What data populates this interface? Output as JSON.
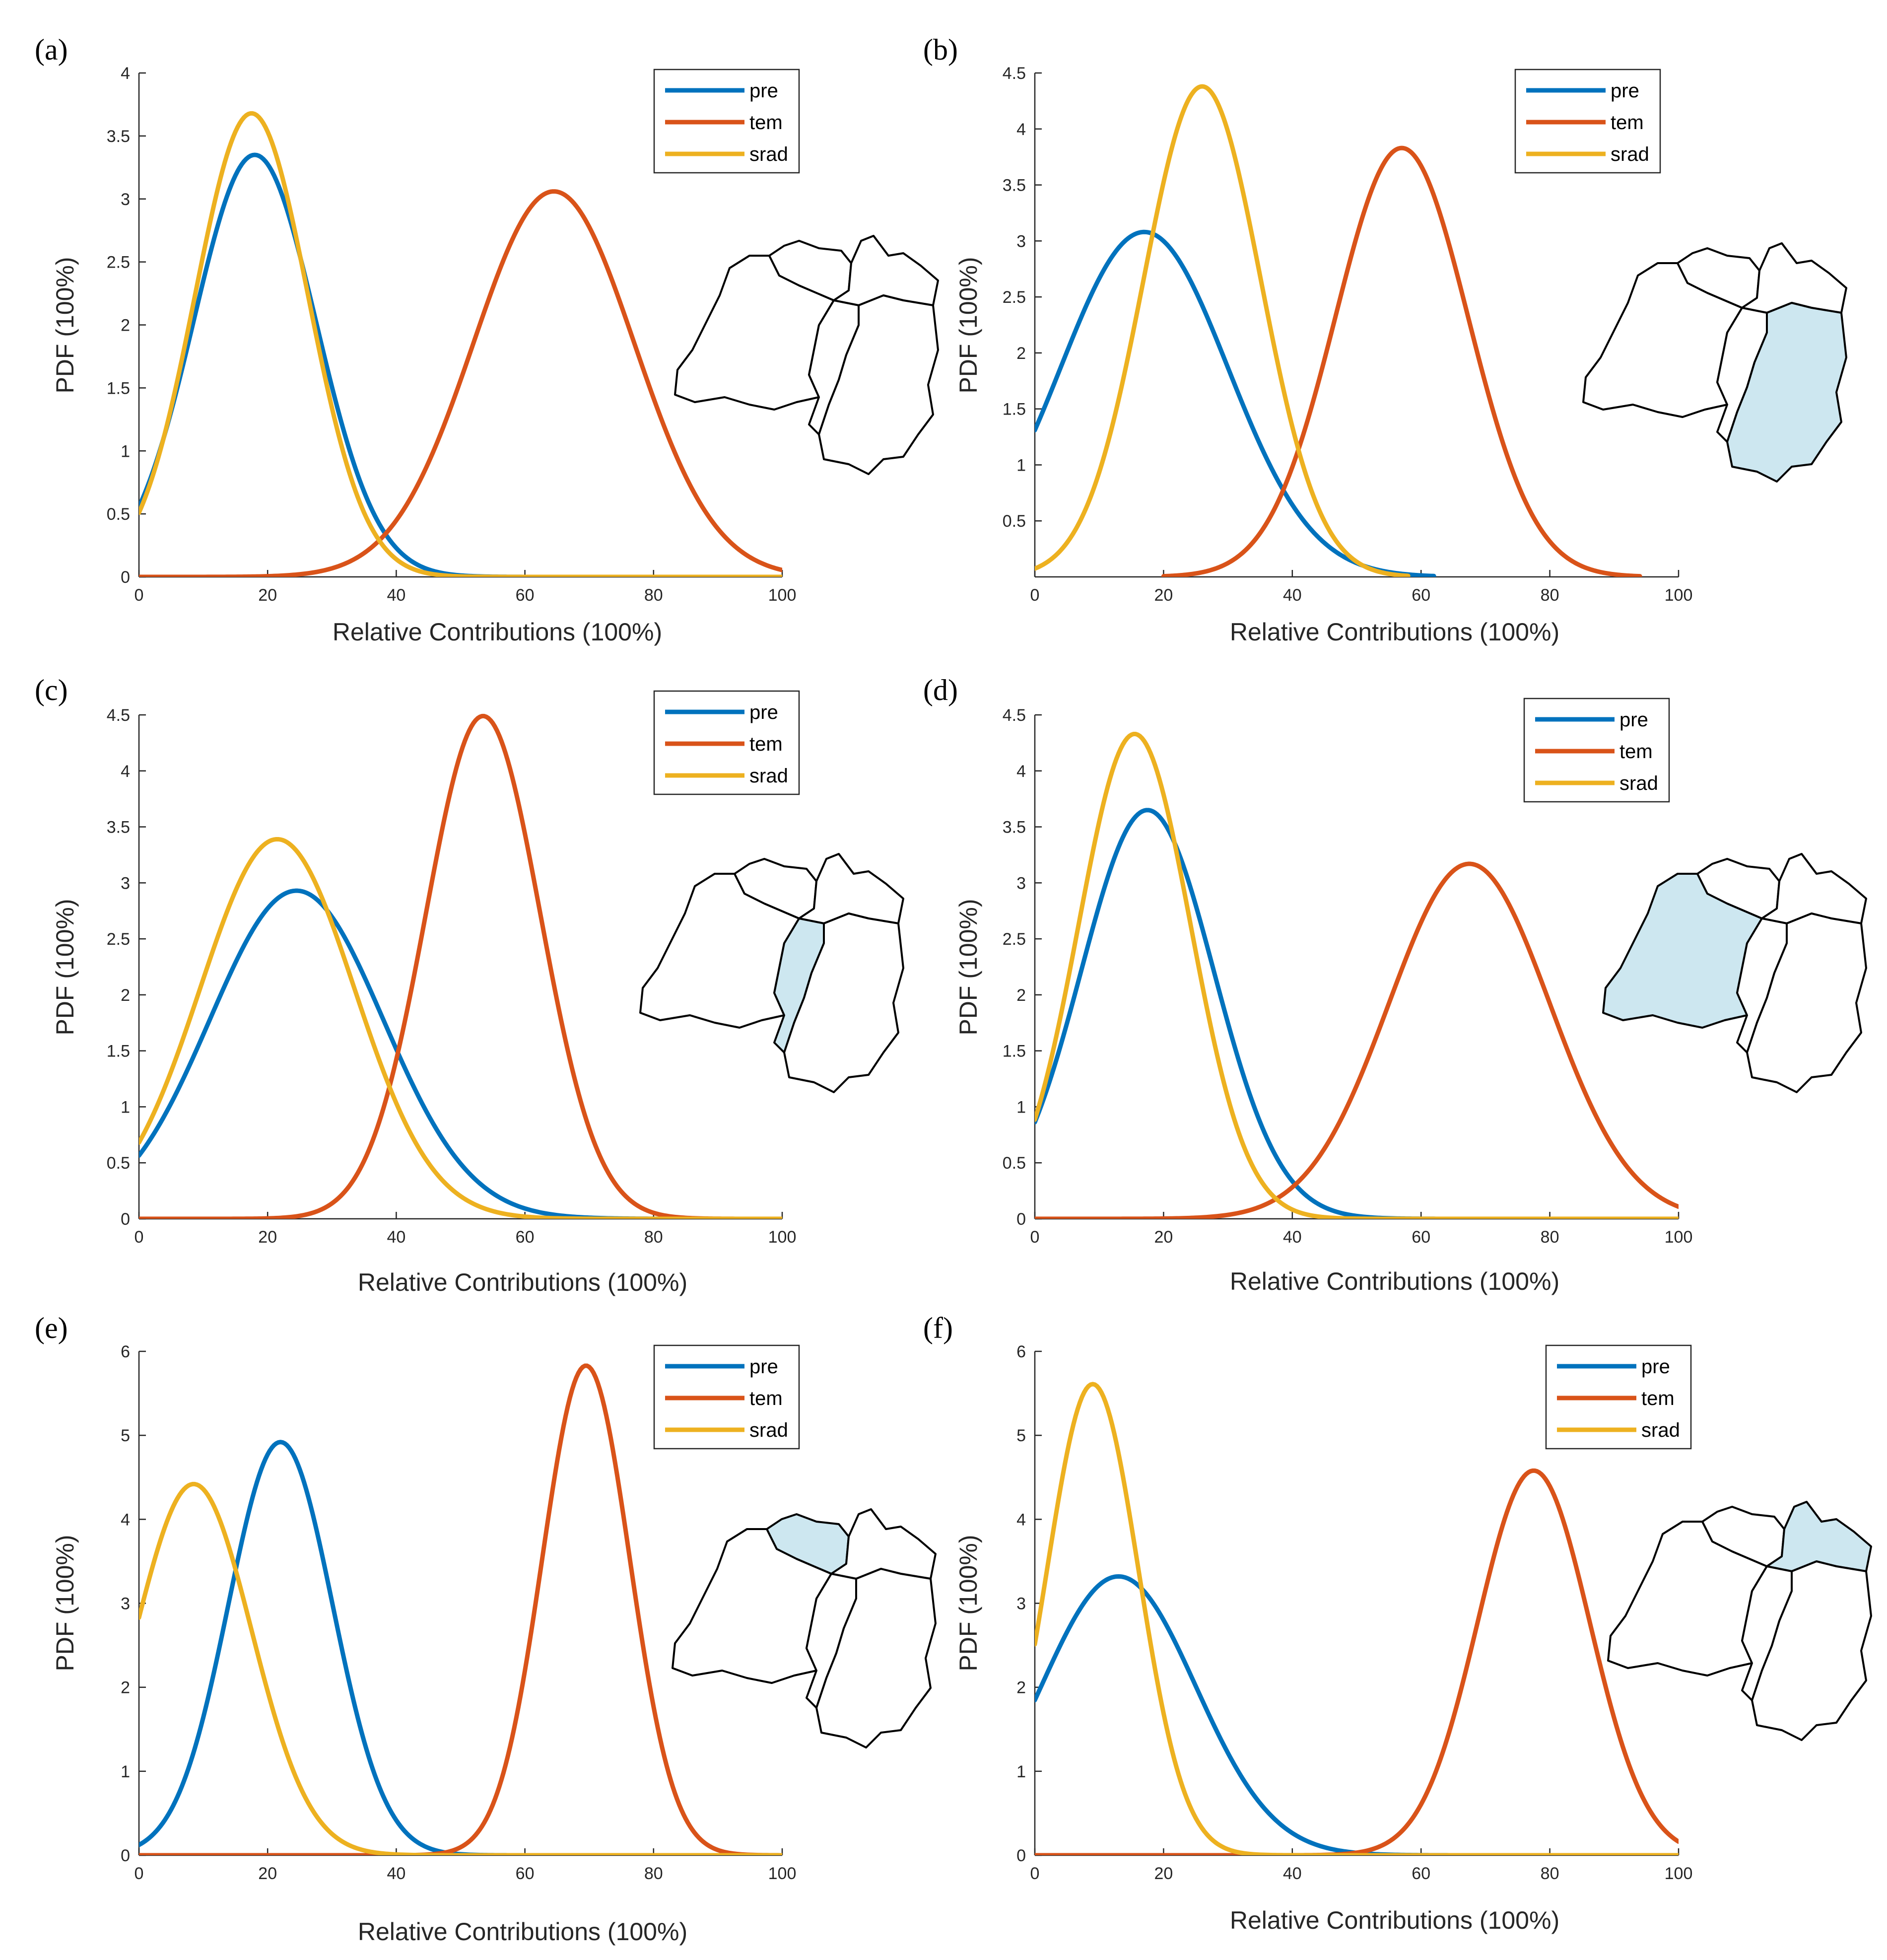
{
  "colors": {
    "pre": "#0072bd",
    "tem": "#d95319",
    "srad": "#edb120",
    "highlight": "#cde7f0"
  },
  "chart_data": [
    {
      "panel": "(a)",
      "type": "line",
      "xlabel": "Relative Contributions (100%)",
      "ylabel": "PDF (100%)",
      "xlim": [
        0,
        100
      ],
      "ylim": [
        0,
        4
      ],
      "xticks": [
        "0",
        "20",
        "40",
        "60",
        "80",
        "100"
      ],
      "yticks": [
        "0",
        "0.5",
        "1",
        "1.5",
        "2",
        "2.5",
        "3",
        "3.5",
        "4"
      ],
      "legend": [
        "pre",
        "tem",
        "srad"
      ],
      "highlight_region": "none",
      "series": [
        {
          "name": "pre",
          "mean": 18,
          "sd": 9.5,
          "peak": 3.35,
          "x_range": [
            0,
            100
          ]
        },
        {
          "name": "tem",
          "mean": 64.5,
          "sd": 12.5,
          "peak": 3.06,
          "x_range": [
            0,
            100
          ]
        },
        {
          "name": "srad",
          "mean": 17.5,
          "sd": 8.8,
          "peak": 3.68,
          "x_range": [
            0,
            100
          ]
        }
      ]
    },
    {
      "panel": "(b)",
      "type": "line",
      "xlabel": "Relative Contributions (100%)",
      "ylabel": "PDF (100%)",
      "xlim": [
        0,
        100
      ],
      "ylim": [
        0,
        4.5
      ],
      "xticks": [
        "0",
        "20",
        "40",
        "60",
        "80",
        "100"
      ],
      "yticks": [
        "0.5",
        "1",
        "1.5",
        "2",
        "2.5",
        "3",
        "3.5",
        "4",
        "4.5"
      ],
      "legend": [
        "pre",
        "tem",
        "srad"
      ],
      "highlight_region": "east",
      "series": [
        {
          "name": "pre",
          "mean": 17,
          "sd": 13,
          "peak": 3.08,
          "x_range": [
            0,
            62
          ]
        },
        {
          "name": "tem",
          "mean": 57,
          "sd": 10.3,
          "peak": 3.83,
          "x_range": [
            20,
            94
          ]
        },
        {
          "name": "srad",
          "mean": 26,
          "sd": 9.1,
          "peak": 4.38,
          "x_range": [
            0,
            58
          ]
        }
      ]
    },
    {
      "panel": "(c)",
      "type": "line",
      "xlabel": "Relative Contributions (100%)",
      "ylabel": "PDF (100%)",
      "xlim": [
        0,
        100
      ],
      "ylim": [
        0,
        4.5
      ],
      "xticks": [
        "0",
        "20",
        "40",
        "60",
        "80",
        "100"
      ],
      "yticks": [
        "0",
        "0.5",
        "1",
        "1.5",
        "2",
        "2.5",
        "3",
        "3.5",
        "4",
        "4.5"
      ],
      "legend": [
        "pre",
        "tem",
        "srad"
      ],
      "highlight_region": "center",
      "series": [
        {
          "name": "pre",
          "mean": 24.5,
          "sd": 13.5,
          "peak": 2.93,
          "x_range": [
            0,
            100
          ]
        },
        {
          "name": "tem",
          "mean": 53.5,
          "sd": 8.9,
          "peak": 4.49,
          "x_range": [
            0,
            100
          ]
        },
        {
          "name": "srad",
          "mean": 21.5,
          "sd": 12,
          "peak": 3.39,
          "x_range": [
            0,
            100
          ]
        }
      ]
    },
    {
      "panel": "(d)",
      "type": "line",
      "xlabel": "Relative Contributions (100%)",
      "ylabel": "PDF (100%)",
      "xlim": [
        0,
        100
      ],
      "ylim": [
        0,
        4.5
      ],
      "xticks": [
        "0",
        "20",
        "40",
        "60",
        "80",
        "100"
      ],
      "yticks": [
        "0",
        "0.5",
        "1",
        "1.5",
        "2",
        "2.5",
        "3",
        "3.5",
        "4",
        "4.5"
      ],
      "legend": [
        "pre",
        "tem",
        "srad"
      ],
      "highlight_region": "west",
      "series": [
        {
          "name": "pre",
          "mean": 17.5,
          "sd": 10.3,
          "peak": 3.65,
          "x_range": [
            0,
            100
          ]
        },
        {
          "name": "tem",
          "mean": 67.5,
          "sd": 12.5,
          "peak": 3.17,
          "x_range": [
            0,
            100
          ]
        },
        {
          "name": "srad",
          "mean": 15.5,
          "sd": 8.7,
          "peak": 4.33,
          "x_range": [
            0,
            100
          ]
        }
      ]
    },
    {
      "panel": "(e)",
      "type": "line",
      "xlabel": "Relative Contributions (100%)",
      "ylabel": "PDF (100%)",
      "xlim": [
        0,
        100
      ],
      "ylim": [
        0,
        6
      ],
      "xticks": [
        "0",
        "20",
        "40",
        "60",
        "80",
        "100"
      ],
      "yticks": [
        "0",
        "1",
        "2",
        "3",
        "4",
        "5",
        "6"
      ],
      "legend": [
        "pre",
        "tem",
        "srad"
      ],
      "highlight_region": "north-west",
      "series": [
        {
          "name": "pre",
          "mean": 22,
          "sd": 8.1,
          "peak": 4.92,
          "x_range": [
            0,
            100
          ]
        },
        {
          "name": "tem",
          "mean": 69.5,
          "sd": 6.8,
          "peak": 5.83,
          "x_range": [
            0,
            100
          ]
        },
        {
          "name": "srad",
          "mean": 8.5,
          "sd": 9,
          "peak": 4.42,
          "x_range": [
            0,
            100
          ]
        }
      ]
    },
    {
      "panel": "(f)",
      "type": "line",
      "xlabel": "Relative Contributions (100%)",
      "ylabel": "PDF (100%)",
      "xlim": [
        0,
        100
      ],
      "ylim": [
        0,
        6
      ],
      "xticks": [
        "0",
        "20",
        "40",
        "60",
        "80",
        "100"
      ],
      "yticks": [
        "0",
        "1",
        "2",
        "3",
        "4",
        "5",
        "6"
      ],
      "legend": [
        "pre",
        "tem",
        "srad"
      ],
      "highlight_region": "north-east",
      "series": [
        {
          "name": "pre",
          "mean": 13,
          "sd": 12,
          "peak": 3.32,
          "x_range": [
            0,
            100
          ]
        },
        {
          "name": "tem",
          "mean": 77.5,
          "sd": 8.7,
          "peak": 4.58,
          "x_range": [
            0,
            100
          ]
        },
        {
          "name": "srad",
          "mean": 9,
          "sd": 7.1,
          "peak": 5.61,
          "x_range": [
            0,
            100
          ]
        }
      ]
    }
  ]
}
